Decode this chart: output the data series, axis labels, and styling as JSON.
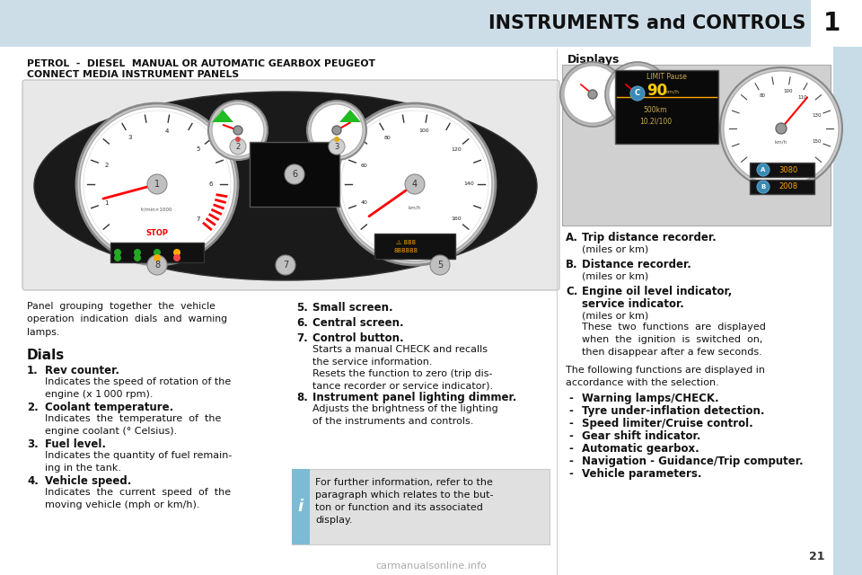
{
  "page_number": "21",
  "chapter_number": "1",
  "title": "INSTRUMENTS and CONTROLS",
  "section_title_line1": "PETROL  -  DIESEL  MANUAL OR AUTOMATIC GEARBOX PEUGEOT",
  "section_title_line2": "CONNECT MEDIA INSTRUMENT PANELS",
  "displays_title": "Displays",
  "panel_desc": "Panel  grouping  together  the  vehicle\noperation  indication  dials  and  warning\nlamps.",
  "dials_title": "Dials",
  "info_box": "For further information, refer to the\nparagraph which relates to the but-\nton or function and its associated\ndisplay.",
  "following_text": "The following functions are displayed in\naccordance with the selection.",
  "dash_items": [
    "Warning lamps/CHECK.",
    "Tyre under-inflation detection.",
    "Speed limiter/Cruise control.",
    "Gear shift indicator.",
    "Automatic gearbox.",
    "Navigation - Guidance/Trip computer.",
    "Vehicle parameters."
  ],
  "bg_color": "#f0f6f8",
  "white": "#ffffff",
  "header_bg": "#ccdde8",
  "right_tab_bg": "#c8dce8",
  "text_color": "#1a1a1a",
  "info_bg": "#e2e2e2",
  "info_border": "#7bbcd4"
}
